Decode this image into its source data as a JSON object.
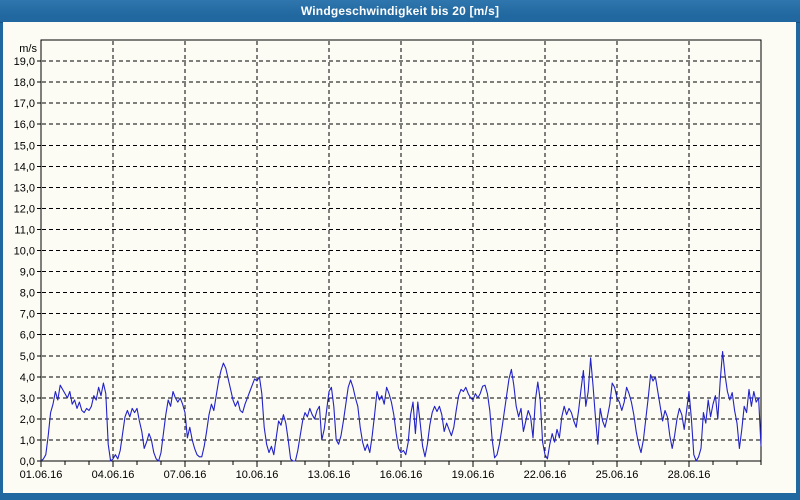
{
  "window": {
    "title": "Windgeschwindigkeit bis 20 [m/s]"
  },
  "colors": {
    "chrome": "#2268A0",
    "chrome_light": "#2E76AD",
    "chrome_dark": "#17527E",
    "paper": "#FCFCF4",
    "line": "#2222C8",
    "grid": "#000000",
    "text": "#000000"
  },
  "chart_data": {
    "type": "line",
    "title": "Windgeschwindigkeit bis 20 [m/s]",
    "ylabel": "m/s",
    "xlabel": "",
    "ylim": [
      0,
      20
    ],
    "ytick_step": 1.0,
    "grid": true,
    "legend": "none",
    "ytick_labels": [
      "0,0",
      "1,0",
      "2,0",
      "3,0",
      "4,0",
      "5,0",
      "6,0",
      "7,0",
      "8,0",
      "9,0",
      "10,0",
      "11,0",
      "12,0",
      "13,0",
      "14,0",
      "15,0",
      "16,0",
      "17,0",
      "18,0",
      "19,0"
    ],
    "xtick_labels": [
      "01.06.16",
      "04.06.16",
      "07.06.16",
      "10.06.16",
      "13.06.16",
      "16.06.16",
      "19.06.16",
      "22.06.16",
      "25.06.16",
      "28.06.16"
    ],
    "xtick_day_offsets": [
      0,
      3,
      6,
      9,
      12,
      15,
      18,
      21,
      24,
      27
    ],
    "x_total_days": 30,
    "minor_xtick_every_days": 1,
    "series": [
      {
        "name": "Windgeschwindigkeit",
        "unit": "m/s",
        "x_start_day": 0,
        "x_step_days": 0.1,
        "values": [
          0.0,
          0.1,
          0.3,
          1.2,
          2.3,
          2.7,
          3.3,
          2.9,
          3.6,
          3.4,
          3.2,
          3.0,
          3.3,
          2.7,
          2.9,
          2.5,
          2.8,
          2.4,
          2.3,
          2.5,
          2.4,
          2.6,
          3.1,
          2.9,
          3.5,
          3.1,
          3.7,
          3.2,
          0.8,
          0.0,
          0.1,
          0.3,
          0.1,
          0.5,
          1.3,
          2.1,
          2.4,
          2.1,
          2.5,
          2.3,
          2.5,
          1.9,
          1.4,
          0.6,
          0.9,
          1.3,
          1.0,
          0.4,
          0.1,
          0.0,
          0.4,
          1.3,
          2.2,
          2.9,
          2.6,
          3.3,
          3.0,
          2.8,
          3.0,
          2.7,
          2.3,
          1.1,
          1.6,
          1.0,
          0.6,
          0.3,
          0.2,
          0.2,
          0.7,
          1.4,
          2.2,
          2.7,
          2.4,
          3.1,
          3.8,
          4.3,
          4.65,
          4.4,
          3.9,
          3.4,
          2.9,
          2.6,
          2.85,
          2.4,
          2.3,
          2.7,
          3.0,
          3.3,
          3.6,
          3.9,
          3.8,
          4.0,
          3.2,
          1.6,
          0.8,
          0.4,
          0.7,
          0.3,
          1.1,
          1.9,
          1.7,
          2.2,
          1.8,
          1.0,
          0.1,
          0.0,
          0.0,
          0.5,
          1.2,
          1.9,
          2.3,
          2.1,
          2.5,
          2.2,
          2.0,
          2.4,
          2.6,
          1.0,
          1.5,
          2.4,
          3.3,
          3.5,
          2.6,
          1.0,
          0.8,
          1.2,
          1.9,
          2.7,
          3.5,
          3.85,
          3.5,
          3.0,
          2.6,
          1.6,
          0.9,
          0.5,
          0.8,
          0.4,
          1.2,
          2.2,
          3.3,
          2.9,
          3.1,
          2.7,
          3.5,
          3.2,
          2.8,
          2.2,
          1.3,
          0.6,
          0.4,
          0.5,
          0.3,
          0.9,
          2.2,
          2.8,
          1.3,
          2.8,
          1.8,
          0.7,
          0.2,
          0.8,
          1.7,
          2.3,
          2.6,
          2.35,
          2.6,
          2.2,
          1.4,
          1.8,
          1.5,
          1.2,
          1.6,
          2.4,
          3.1,
          3.4,
          3.3,
          3.5,
          3.2,
          3.0,
          2.9,
          3.2,
          3.0,
          3.2,
          3.55,
          3.6,
          3.2,
          2.4,
          1.0,
          0.15,
          0.3,
          0.8,
          1.5,
          2.3,
          3.1,
          3.9,
          4.35,
          3.6,
          2.6,
          2.1,
          2.5,
          1.4,
          1.9,
          2.4,
          2.1,
          1.1,
          2.9,
          3.75,
          2.9,
          0.9,
          0.3,
          0.1,
          0.8,
          1.3,
          0.9,
          1.5,
          1.1,
          2.1,
          2.6,
          2.2,
          2.5,
          2.3,
          1.9,
          1.6,
          2.4,
          3.4,
          4.3,
          2.6,
          3.3,
          4.9,
          3.6,
          2.1,
          0.8,
          2.5,
          1.9,
          1.6,
          2.1,
          2.7,
          3.7,
          3.5,
          3.0,
          2.8,
          2.4,
          2.8,
          3.5,
          3.2,
          2.8,
          2.2,
          1.4,
          0.8,
          0.4,
          1.0,
          2.0,
          3.0,
          4.1,
          3.8,
          4.0,
          3.3,
          2.6,
          1.9,
          2.4,
          2.1,
          1.2,
          0.6,
          1.2,
          2.0,
          2.5,
          2.2,
          1.5,
          2.4,
          3.3,
          2.0,
          0.3,
          0.0,
          0.2,
          0.6,
          2.3,
          1.8,
          2.9,
          2.1,
          2.7,
          3.1,
          2.0,
          3.8,
          5.2,
          4.1,
          3.3,
          2.9,
          3.25,
          2.4,
          1.8,
          0.6,
          1.5,
          2.6,
          2.3,
          3.4,
          2.6,
          3.3,
          2.8,
          3.0,
          0.7
        ]
      }
    ]
  }
}
